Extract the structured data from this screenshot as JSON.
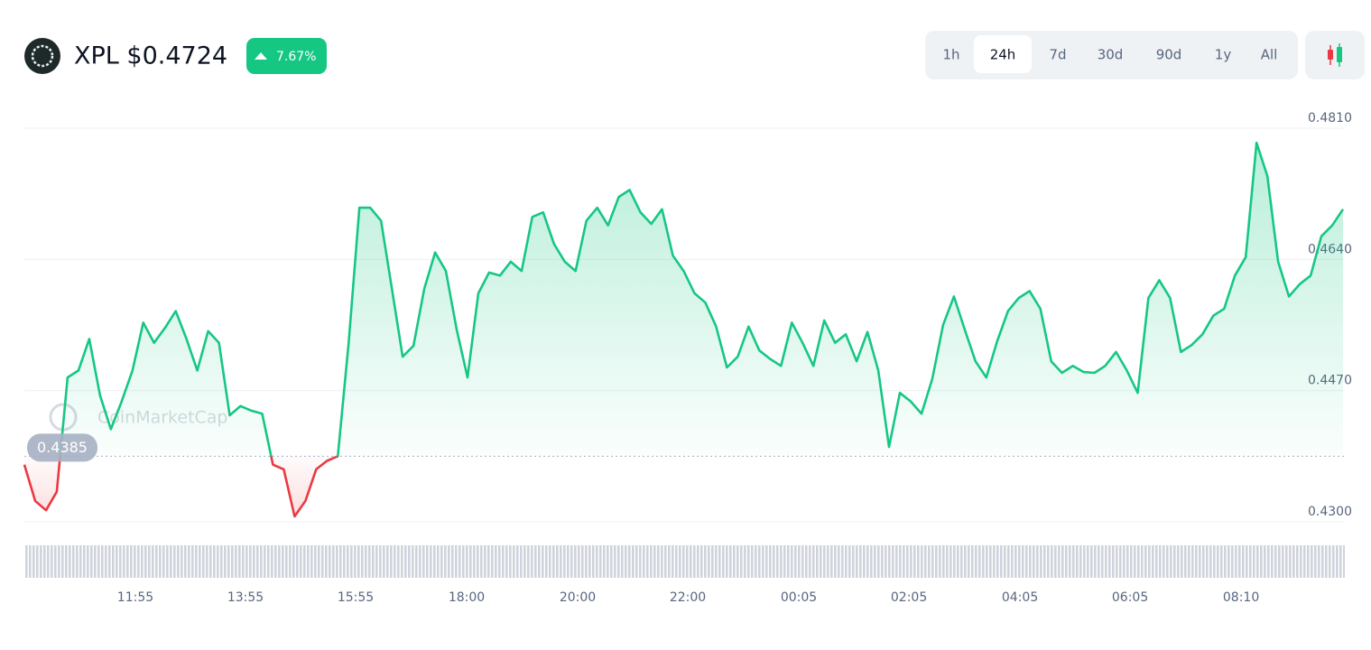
{
  "header": {
    "title": "XPL $0.4724",
    "change": "7.67%",
    "tabs": [
      "1h",
      "24h",
      "7d",
      "30d",
      "90d",
      "1y",
      "All"
    ],
    "active_tab": "24h"
  },
  "chart_data": {
    "type": "line",
    "watermark": "CoinMarketCap",
    "color_up": "#16c784",
    "color_down": "#ea3943",
    "baseline": 0.4385,
    "values": [
      0.4374,
      0.4327,
      0.4315,
      0.4339,
      0.4487,
      0.4496,
      0.4537,
      0.4464,
      0.442,
      0.4456,
      0.4496,
      0.4558,
      0.4532,
      0.4551,
      0.4573,
      0.4537,
      0.4496,
      0.4547,
      0.4532,
      0.4438,
      0.445,
      0.4444,
      0.444,
      0.4374,
      0.4368,
      0.4307,
      0.4327,
      0.4368,
      0.4379,
      0.4385,
      0.4532,
      0.4707,
      0.4707,
      0.469,
      0.4602,
      0.4514,
      0.4528,
      0.4602,
      0.4649,
      0.4625,
      0.4549,
      0.4487,
      0.4596,
      0.4623,
      0.4619,
      0.4637,
      0.4625,
      0.4695,
      0.4701,
      0.466,
      0.4637,
      0.4625,
      0.469,
      0.4707,
      0.4684,
      0.4721,
      0.473,
      0.4701,
      0.4686,
      0.4705,
      0.4645,
      0.4625,
      0.4596,
      0.4584,
      0.4553,
      0.45,
      0.4514,
      0.4553,
      0.4522,
      0.4511,
      0.4502,
      0.4558,
      0.4532,
      0.4502,
      0.4561,
      0.4532,
      0.4543,
      0.4508,
      0.4546,
      0.4496,
      0.4397,
      0.4467,
      0.4456,
      0.444,
      0.4485,
      0.4555,
      0.4592,
      0.4549,
      0.4508,
      0.4487,
      0.4534,
      0.4573,
      0.459,
      0.4599,
      0.4576,
      0.4508,
      0.4493,
      0.4502,
      0.4494,
      0.4493,
      0.4502,
      0.452,
      0.4496,
      0.4467,
      0.459,
      0.4613,
      0.459,
      0.452,
      0.4529,
      0.4543,
      0.4567,
      0.4576,
      0.4619,
      0.4643,
      0.4791,
      0.4748,
      0.4637,
      0.4592,
      0.4608,
      0.4619,
      0.467,
      0.4684,
      0.4705
    ],
    "ylim": [
      0.43,
      0.481
    ],
    "yticks": [
      {
        "value": 0.481,
        "label": "0.4810"
      },
      {
        "value": 0.464,
        "label": "0.4640"
      },
      {
        "value": 0.447,
        "label": "0.4470"
      },
      {
        "value": 0.43,
        "label": "0.4300"
      }
    ],
    "xlim": [
      0,
      122
    ],
    "xticks": [
      {
        "value": 10.27,
        "label": "11:55"
      },
      {
        "value": 20.46,
        "label": "13:55"
      },
      {
        "value": 30.65,
        "label": "15:55"
      },
      {
        "value": 40.92,
        "label": "18:00"
      },
      {
        "value": 51.19,
        "label": "20:00"
      },
      {
        "value": 61.38,
        "label": "22:00"
      },
      {
        "value": 71.65,
        "label": "00:05"
      },
      {
        "value": 81.84,
        "label": "02:05"
      },
      {
        "value": 92.11,
        "label": "04:05"
      },
      {
        "value": 102.3,
        "label": "06:05"
      },
      {
        "value": 112.57,
        "label": "08:10"
      }
    ],
    "grid": true
  }
}
